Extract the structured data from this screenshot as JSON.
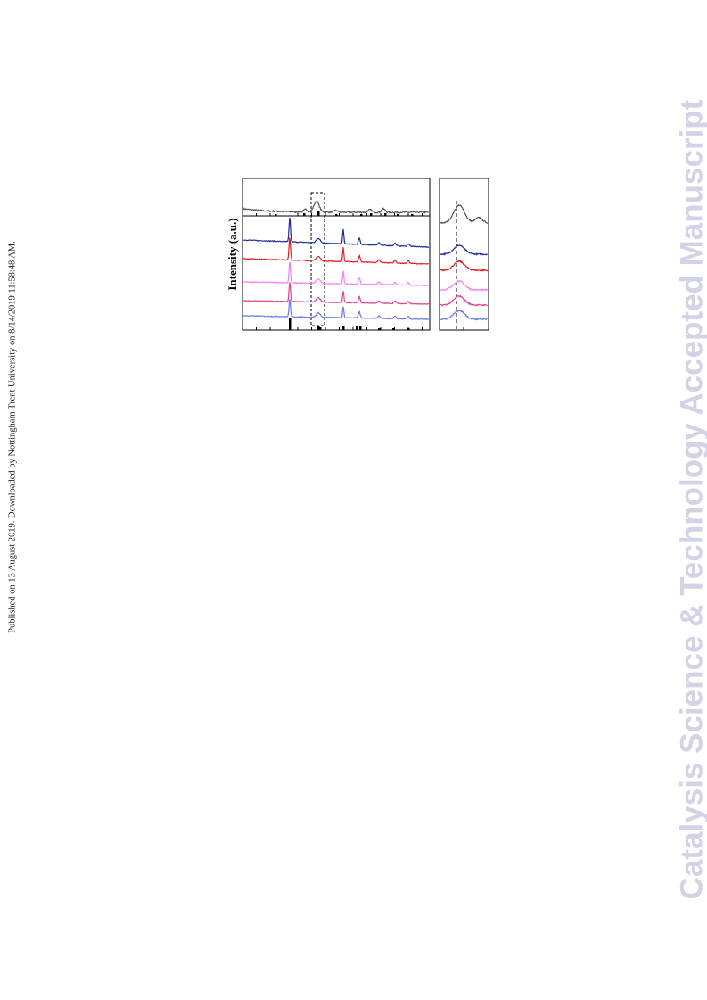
{
  "side_note": "Published on 13 August 2019. Downloaded by Nottingham Trent University on 8/14/2019 11:58:48 AM.",
  "watermark": "Catalysis Science & Technology Accepted Manuscript",
  "figure": {
    "y_axis_label": "Intensity (a.u.)"
  }
}
